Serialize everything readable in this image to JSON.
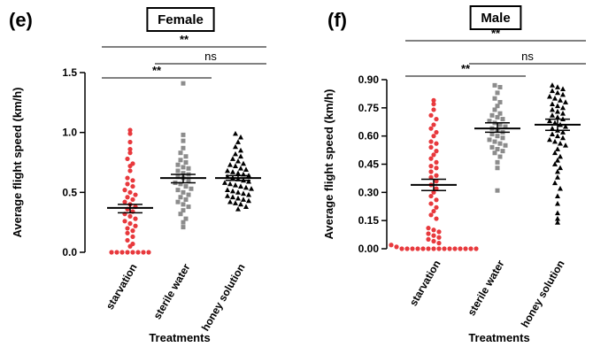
{
  "chart_data": [
    {
      "panel": "(e)",
      "type": "scatter",
      "title": "Female",
      "ylabel": "Average flight speed (km/h)",
      "xlabel": "Treatments",
      "categories": [
        "starvation",
        "sterile water",
        "honey solution"
      ],
      "yticks": [
        "0.0",
        "0.5",
        "1.0",
        "1.5"
      ],
      "ylim": [
        -0.05,
        1.5
      ],
      "series": [
        {
          "category": "starvation",
          "color": "#e8393d",
          "marker": "circle",
          "mean": 0.37,
          "sem_low": 0.33,
          "sem_high": 0.4,
          "values": [
            1.02,
            0.99,
            0.92,
            0.86,
            0.83,
            0.78,
            0.74,
            0.72,
            0.68,
            0.62,
            0.6,
            0.57,
            0.55,
            0.52,
            0.5,
            0.48,
            0.46,
            0.44,
            0.42,
            0.4,
            0.38,
            0.36,
            0.34,
            0.32,
            0.3,
            0.28,
            0.26,
            0.24,
            0.22,
            0.2,
            0.18,
            0.16,
            0.13,
            0.1,
            0.07,
            0.05,
            0.0,
            0.0,
            0.0,
            0.0,
            0.0,
            0.0,
            0.0,
            0.0
          ]
        },
        {
          "category": "sterile water",
          "color": "#8c8c8c",
          "marker": "square",
          "mean": 0.62,
          "sem_low": 0.58,
          "sem_high": 0.65,
          "values": [
            1.41,
            0.98,
            0.93,
            0.87,
            0.83,
            0.8,
            0.77,
            0.75,
            0.73,
            0.71,
            0.7,
            0.68,
            0.66,
            0.65,
            0.63,
            0.62,
            0.6,
            0.58,
            0.57,
            0.55,
            0.53,
            0.52,
            0.5,
            0.48,
            0.46,
            0.44,
            0.42,
            0.4,
            0.38,
            0.35,
            0.32,
            0.28,
            0.25,
            0.21
          ]
        },
        {
          "category": "honey solution",
          "color": "#000000",
          "marker": "triangle",
          "mean": 0.62,
          "sem_low": 0.6,
          "sem_high": 0.64,
          "values": [
            0.99,
            0.96,
            0.92,
            0.88,
            0.85,
            0.82,
            0.8,
            0.78,
            0.76,
            0.74,
            0.73,
            0.72,
            0.7,
            0.69,
            0.68,
            0.67,
            0.66,
            0.65,
            0.64,
            0.63,
            0.62,
            0.61,
            0.6,
            0.59,
            0.58,
            0.57,
            0.56,
            0.55,
            0.54,
            0.53,
            0.52,
            0.51,
            0.5,
            0.49,
            0.48,
            0.47,
            0.46,
            0.45,
            0.44,
            0.43,
            0.42,
            0.41,
            0.4,
            0.38,
            0.36
          ]
        }
      ],
      "comparisons": [
        {
          "from": 0,
          "to": 1,
          "label": "**",
          "level": 0
        },
        {
          "from": 1,
          "to": 2,
          "label": "ns",
          "level": 1
        },
        {
          "from": 0,
          "to": 2,
          "label": "**",
          "level": 2
        }
      ]
    },
    {
      "panel": "(f)",
      "type": "scatter",
      "title": "Male",
      "ylabel": "Average flight speed (km/h)",
      "xlabel": "Treatments",
      "categories": [
        "starvation",
        "sterile water",
        "honey solution"
      ],
      "yticks": [
        "0.00",
        "0.15",
        "0.30",
        "0.45",
        "0.60",
        "0.75",
        "0.90"
      ],
      "ylim": [
        -0.03,
        0.9
      ],
      "series": [
        {
          "category": "starvation",
          "color": "#e8393d",
          "marker": "circle",
          "mean": 0.34,
          "sem_low": 0.31,
          "sem_high": 0.37,
          "values": [
            0.79,
            0.77,
            0.74,
            0.71,
            0.69,
            0.66,
            0.64,
            0.62,
            0.6,
            0.57,
            0.56,
            0.54,
            0.52,
            0.5,
            0.48,
            0.46,
            0.44,
            0.43,
            0.41,
            0.39,
            0.38,
            0.36,
            0.34,
            0.32,
            0.3,
            0.28,
            0.26,
            0.24,
            0.22,
            0.2,
            0.18,
            0.16,
            0.11,
            0.1,
            0.09,
            0.08,
            0.07,
            0.06,
            0.05,
            0.04,
            0.03,
            0.02,
            0.01,
            0.0,
            0.0,
            0.0,
            0.0,
            0.0,
            0.0,
            0.0,
            0.0,
            0.0,
            0.0,
            0.0,
            0.0,
            0.0,
            0.0,
            0.0
          ]
        },
        {
          "category": "sterile water",
          "color": "#8c8c8c",
          "marker": "square",
          "mean": 0.64,
          "sem_low": 0.62,
          "sem_high": 0.67,
          "values": [
            0.87,
            0.86,
            0.83,
            0.8,
            0.78,
            0.76,
            0.74,
            0.72,
            0.71,
            0.7,
            0.69,
            0.68,
            0.67,
            0.66,
            0.65,
            0.64,
            0.63,
            0.62,
            0.61,
            0.6,
            0.59,
            0.58,
            0.57,
            0.56,
            0.55,
            0.54,
            0.53,
            0.52,
            0.51,
            0.49,
            0.46,
            0.43,
            0.31
          ]
        },
        {
          "category": "honey solution",
          "color": "#000000",
          "marker": "triangle",
          "mean": 0.66,
          "sem_low": 0.63,
          "sem_high": 0.69,
          "values": [
            0.87,
            0.86,
            0.85,
            0.84,
            0.83,
            0.82,
            0.81,
            0.8,
            0.79,
            0.78,
            0.77,
            0.76,
            0.75,
            0.74,
            0.73,
            0.72,
            0.71,
            0.7,
            0.69,
            0.68,
            0.67,
            0.66,
            0.65,
            0.64,
            0.63,
            0.62,
            0.61,
            0.6,
            0.59,
            0.58,
            0.57,
            0.56,
            0.55,
            0.53,
            0.51,
            0.49,
            0.47,
            0.45,
            0.43,
            0.41,
            0.38,
            0.35,
            0.32,
            0.28,
            0.24,
            0.19,
            0.16,
            0.14
          ]
        }
      ],
      "comparisons": [
        {
          "from": 0,
          "to": 1,
          "label": "**",
          "level": 0
        },
        {
          "from": 1,
          "to": 2,
          "label": "ns",
          "level": 1
        },
        {
          "from": 0,
          "to": 2,
          "label": "**",
          "level": 2
        }
      ]
    }
  ]
}
